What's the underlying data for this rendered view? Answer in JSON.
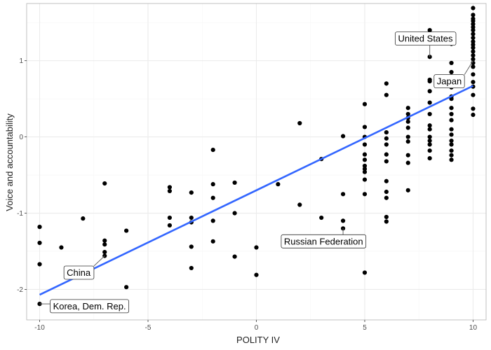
{
  "chart_data": {
    "type": "scatter",
    "title": "",
    "xlabel": "POLITY IV",
    "ylabel": "Voice and accountability",
    "xlim": [
      -10.6,
      10.6
    ],
    "ylim": [
      -2.4,
      1.75
    ],
    "x_ticks": [
      -10,
      -5,
      0,
      5,
      10
    ],
    "x_tick_labels": [
      "-10",
      "-5",
      "0",
      "5",
      "10"
    ],
    "y_ticks": [
      -2,
      -1,
      0,
      1
    ],
    "y_tick_labels": [
      "-2",
      "-1",
      "0",
      "1"
    ],
    "grid": true,
    "colors": {
      "points": "#000000",
      "fit_line": "#3366FF",
      "grid_major": "#ebebeb",
      "grid_minor": "#f5f5f5",
      "panel_border": "#b3b3b3"
    },
    "points": [
      {
        "x": -10,
        "y": -1.18
      },
      {
        "x": -10,
        "y": -1.39
      },
      {
        "x": -10,
        "y": -1.67
      },
      {
        "x": -10,
        "y": -2.19
      },
      {
        "x": -9,
        "y": -1.45
      },
      {
        "x": -8,
        "y": -1.07
      },
      {
        "x": -7,
        "y": -0.61
      },
      {
        "x": -7,
        "y": -1.36
      },
      {
        "x": -7,
        "y": -1.41
      },
      {
        "x": -7,
        "y": -1.51
      },
      {
        "x": -7,
        "y": -1.56
      },
      {
        "x": -6,
        "y": -1.23
      },
      {
        "x": -6,
        "y": -1.97
      },
      {
        "x": -4,
        "y": -0.66
      },
      {
        "x": -4,
        "y": -0.71
      },
      {
        "x": -4,
        "y": -1.06
      },
      {
        "x": -4,
        "y": -1.16
      },
      {
        "x": -3,
        "y": -0.73
      },
      {
        "x": -3,
        "y": -1.06
      },
      {
        "x": -3,
        "y": -1.12
      },
      {
        "x": -3,
        "y": -1.44
      },
      {
        "x": -3,
        "y": -1.72
      },
      {
        "x": -2,
        "y": -0.17
      },
      {
        "x": -2,
        "y": -0.62
      },
      {
        "x": -2,
        "y": -0.8
      },
      {
        "x": -2,
        "y": -1.1
      },
      {
        "x": -2,
        "y": -1.37
      },
      {
        "x": -1,
        "y": -0.6
      },
      {
        "x": -1,
        "y": -1.0
      },
      {
        "x": -1,
        "y": -1.57
      },
      {
        "x": 0,
        "y": -1.45
      },
      {
        "x": 0,
        "y": -1.81
      },
      {
        "x": 1,
        "y": -0.62
      },
      {
        "x": 2,
        "y": 0.18
      },
      {
        "x": 2,
        "y": -0.89
      },
      {
        "x": 3,
        "y": -0.29
      },
      {
        "x": 3,
        "y": -1.06
      },
      {
        "x": 4,
        "y": 0.01
      },
      {
        "x": 4,
        "y": -0.75
      },
      {
        "x": 4,
        "y": -1.1
      },
      {
        "x": 4,
        "y": -1.2
      },
      {
        "x": 5,
        "y": 0.43
      },
      {
        "x": 5,
        "y": 0.13
      },
      {
        "x": 5,
        "y": 0.0
      },
      {
        "x": 5,
        "y": -0.1
      },
      {
        "x": 5,
        "y": -0.23
      },
      {
        "x": 5,
        "y": -0.3
      },
      {
        "x": 5,
        "y": -0.38
      },
      {
        "x": 5,
        "y": -0.42
      },
      {
        "x": 5,
        "y": -0.46
      },
      {
        "x": 5,
        "y": -0.56
      },
      {
        "x": 5,
        "y": -0.75
      },
      {
        "x": 5,
        "y": -1.78
      },
      {
        "x": 6,
        "y": 0.7
      },
      {
        "x": 6,
        "y": 0.55
      },
      {
        "x": 6,
        "y": 0.06
      },
      {
        "x": 6,
        "y": -0.02
      },
      {
        "x": 6,
        "y": -0.1
      },
      {
        "x": 6,
        "y": -0.23
      },
      {
        "x": 6,
        "y": -0.32
      },
      {
        "x": 6,
        "y": -0.58
      },
      {
        "x": 6,
        "y": -0.72
      },
      {
        "x": 6,
        "y": -0.8
      },
      {
        "x": 6,
        "y": -1.05
      },
      {
        "x": 6,
        "y": -1.11
      },
      {
        "x": 7,
        "y": 0.38
      },
      {
        "x": 7,
        "y": 0.3
      },
      {
        "x": 7,
        "y": 0.25
      },
      {
        "x": 7,
        "y": 0.2
      },
      {
        "x": 7,
        "y": 0.12
      },
      {
        "x": 7,
        "y": 0.0
      },
      {
        "x": 7,
        "y": -0.06
      },
      {
        "x": 7,
        "y": -0.24
      },
      {
        "x": 7,
        "y": -0.34
      },
      {
        "x": 7,
        "y": -0.7
      },
      {
        "x": 8,
        "y": 1.4
      },
      {
        "x": 8,
        "y": 1.05
      },
      {
        "x": 8,
        "y": 0.75
      },
      {
        "x": 8,
        "y": 0.73
      },
      {
        "x": 8,
        "y": 0.6
      },
      {
        "x": 8,
        "y": 0.45
      },
      {
        "x": 8,
        "y": 0.3
      },
      {
        "x": 8,
        "y": 0.15
      },
      {
        "x": 8,
        "y": 0.1
      },
      {
        "x": 8,
        "y": 0.0
      },
      {
        "x": 8,
        "y": -0.05
      },
      {
        "x": 8,
        "y": -0.1
      },
      {
        "x": 8,
        "y": -0.18
      },
      {
        "x": 8,
        "y": -0.28
      },
      {
        "x": 9,
        "y": 1.22
      },
      {
        "x": 9,
        "y": 0.97
      },
      {
        "x": 9,
        "y": 0.85
      },
      {
        "x": 9,
        "y": 0.75
      },
      {
        "x": 9,
        "y": 0.65
      },
      {
        "x": 9,
        "y": 0.53
      },
      {
        "x": 9,
        "y": 0.5
      },
      {
        "x": 9,
        "y": 0.38
      },
      {
        "x": 9,
        "y": 0.3
      },
      {
        "x": 9,
        "y": 0.22
      },
      {
        "x": 9,
        "y": 0.1
      },
      {
        "x": 9,
        "y": 0.03
      },
      {
        "x": 9,
        "y": -0.05
      },
      {
        "x": 9,
        "y": -0.1
      },
      {
        "x": 9,
        "y": -0.18
      },
      {
        "x": 9,
        "y": -0.24
      },
      {
        "x": 9,
        "y": -0.3
      },
      {
        "x": 10,
        "y": 1.69
      },
      {
        "x": 10,
        "y": 1.6
      },
      {
        "x": 10,
        "y": 1.55
      },
      {
        "x": 10,
        "y": 1.52
      },
      {
        "x": 10,
        "y": 1.48
      },
      {
        "x": 10,
        "y": 1.44
      },
      {
        "x": 10,
        "y": 1.4
      },
      {
        "x": 10,
        "y": 1.35
      },
      {
        "x": 10,
        "y": 1.3
      },
      {
        "x": 10,
        "y": 1.25
      },
      {
        "x": 10,
        "y": 1.21
      },
      {
        "x": 10,
        "y": 1.17
      },
      {
        "x": 10,
        "y": 1.12
      },
      {
        "x": 10,
        "y": 1.07
      },
      {
        "x": 10,
        "y": 1.02
      },
      {
        "x": 10,
        "y": 0.97
      },
      {
        "x": 10,
        "y": 0.92
      },
      {
        "x": 10,
        "y": 0.82
      },
      {
        "x": 10,
        "y": 0.72
      },
      {
        "x": 10,
        "y": 0.66
      },
      {
        "x": 10,
        "y": 0.55
      },
      {
        "x": 10,
        "y": 0.37
      },
      {
        "x": 10,
        "y": 0.29
      }
    ],
    "fit_line": {
      "x": [
        -10,
        10
      ],
      "y": [
        -2.07,
        0.67
      ]
    },
    "annotations": [
      {
        "text": "United States",
        "point": {
          "x": 8,
          "y": 1.05
        },
        "label_pos": {
          "x": 7.8,
          "y": 1.29
        }
      },
      {
        "text": "Japan",
        "point": {
          "x": 10,
          "y": 1.0
        },
        "label_pos": {
          "x": 8.9,
          "y": 0.73
        }
      },
      {
        "text": "Russian Federation",
        "point": {
          "x": 4,
          "y": -1.2
        },
        "label_pos": {
          "x": 3.1,
          "y": -1.37
        }
      },
      {
        "text": "China",
        "point": {
          "x": -7,
          "y": -1.56
        },
        "label_pos": {
          "x": -8.2,
          "y": -1.78
        }
      },
      {
        "text": "Korea, Dem. Rep.",
        "point": {
          "x": -10,
          "y": -2.19
        },
        "label_pos": {
          "x": -7.7,
          "y": -2.22
        }
      }
    ]
  }
}
